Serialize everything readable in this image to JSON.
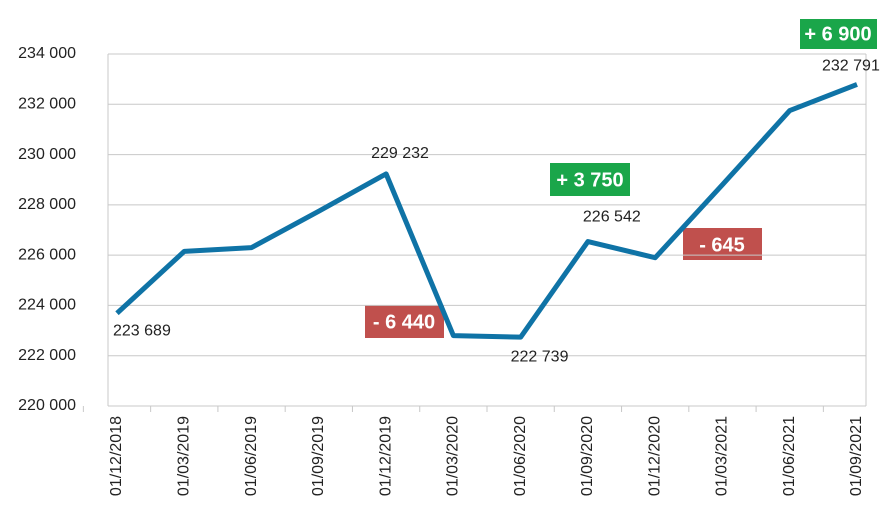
{
  "chart_data": {
    "type": "line",
    "categories": [
      "01/12/2018",
      "01/03/2019",
      "01/06/2019",
      "01/09/2019",
      "01/12/2019",
      "01/03/2020",
      "01/06/2020",
      "01/09/2020",
      "01/12/2020",
      "01/03/2021",
      "01/06/2021",
      "01/09/2021"
    ],
    "values": [
      223689,
      226150,
      226300,
      227750,
      229232,
      222800,
      222739,
      226542,
      225897,
      228800,
      231750,
      232791
    ],
    "value_labels": [
      "223 689",
      null,
      null,
      null,
      "229 232",
      null,
      "222 739",
      "226 542",
      null,
      null,
      null,
      "232 791"
    ],
    "color": "#0f73a6",
    "ylim": [
      220000,
      234000
    ],
    "yticks": [
      {
        "value": 220000,
        "label": "220 000"
      },
      {
        "value": 222000,
        "label": "222 000"
      },
      {
        "value": 224000,
        "label": "224 000"
      },
      {
        "value": 226000,
        "label": "226 000"
      },
      {
        "value": 228000,
        "label": "228 000"
      },
      {
        "value": 230000,
        "label": "230 000"
      },
      {
        "value": 232000,
        "label": "232 000"
      },
      {
        "value": 234000,
        "label": "234 000"
      }
    ],
    "grid": true,
    "annotations": [
      "+ 6 900",
      "+ 3 750",
      "- 6 440",
      "- 645"
    ]
  }
}
